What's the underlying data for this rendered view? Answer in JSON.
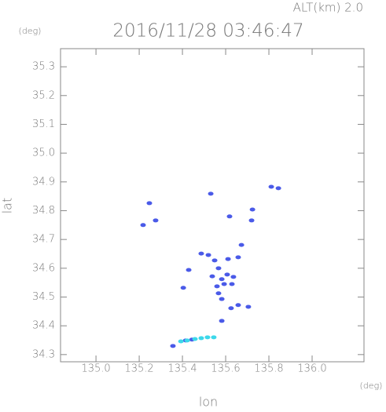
{
  "chart_data": {
    "type": "scatter",
    "title": "2016/11/28 03:46:47",
    "subtitle": "ALT(km) 2.0",
    "y_unit": "(deg)",
    "x_unit": "(deg)",
    "xlabel": "lon",
    "ylabel": "lat",
    "xlim": [
      134.836,
      136.24
    ],
    "ylim": [
      34.275,
      35.363
    ],
    "xticks": [
      {
        "value": 135,
        "label": "135.0"
      },
      135.2,
      135.4,
      135.6,
      135.8,
      {
        "value": 136,
        "label": "136.0"
      }
    ],
    "yticks": [
      34.3,
      34.4,
      34.5,
      34.6,
      34.7,
      34.8,
      34.9,
      {
        "value": 35,
        "label": "35.0"
      },
      35.1,
      35.2,
      35.3
    ],
    "series": [
      {
        "color": "#4a5ae8",
        "x": [
          135.247,
          135.218,
          135.276,
          135.531,
          135.618,
          135.724,
          135.72,
          135.811,
          135.844,
          135.487,
          135.429,
          135.404,
          135.673,
          135.658,
          135.611,
          135.52,
          135.549,
          135.567,
          135.607,
          135.636,
          135.538,
          135.582,
          135.56,
          135.593,
          135.567,
          135.582,
          135.629,
          135.658,
          135.625,
          135.705,
          135.582,
          135.356,
          135.415,
          135.444
        ],
        "y": [
          34.826,
          34.75,
          34.766,
          34.859,
          34.78,
          34.804,
          34.766,
          34.883,
          34.878,
          34.651,
          34.594,
          34.532,
          34.681,
          34.638,
          34.632,
          34.646,
          34.627,
          34.6,
          34.578,
          34.57,
          34.572,
          34.562,
          34.537,
          34.545,
          34.513,
          34.493,
          34.545,
          34.472,
          34.461,
          34.466,
          34.417,
          34.33,
          34.349,
          34.352
        ]
      },
      {
        "color": "#3cd8ea",
        "x": [
          135.393,
          135.422,
          135.458,
          135.487,
          135.516,
          135.545
        ],
        "y": [
          34.346,
          34.349,
          34.354,
          34.357,
          34.36,
          34.36
        ]
      }
    ]
  }
}
